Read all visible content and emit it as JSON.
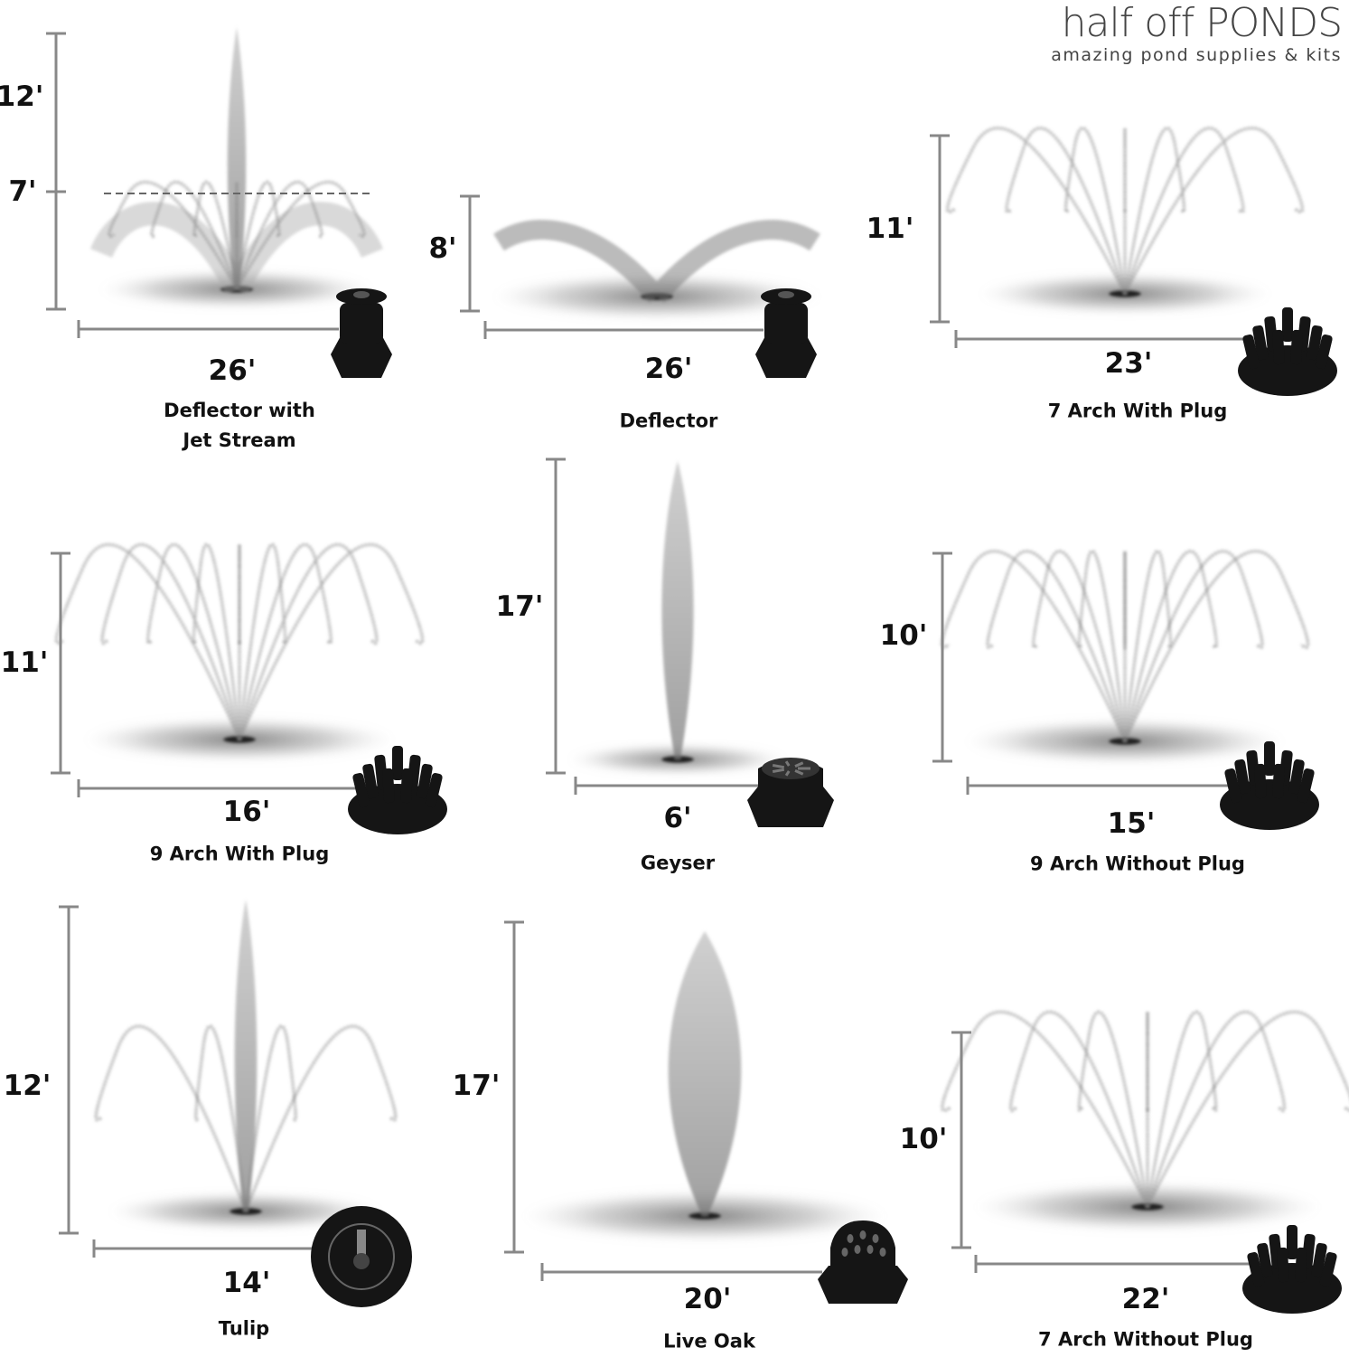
{
  "brand": {
    "name": "half off PONDS",
    "tagline": "amazing pond supplies & kits"
  },
  "colors": {
    "measure_line": "#888888",
    "text": "#111111",
    "spray": "#8a8a8a",
    "nozzle": "#151515"
  },
  "nozzles": [
    {
      "name": "Deflector with\nJet Stream",
      "height": "12'",
      "secondary_height": "7'",
      "width": "26'",
      "icon": "deflector-nozzle"
    },
    {
      "name": "Deflector",
      "height": "8'",
      "width": "26'",
      "icon": "deflector-nozzle"
    },
    {
      "name": "7 Arch With Plug",
      "height": "11'",
      "width": "23'",
      "icon": "arch-nozzle"
    },
    {
      "name": "9 Arch With Plug",
      "height": "11'",
      "width": "16'",
      "icon": "arch-nozzle"
    },
    {
      "name": "Geyser",
      "height": "17'",
      "width": "6'",
      "icon": "geyser-nozzle"
    },
    {
      "name": "9 Arch Without Plug",
      "height": "10'",
      "width": "15'",
      "icon": "arch-nozzle"
    },
    {
      "name": "Tulip",
      "height": "12'",
      "width": "14'",
      "icon": "tulip-nozzle"
    },
    {
      "name": "Live Oak",
      "height": "17'",
      "width": "20'",
      "icon": "live-oak-nozzle"
    },
    {
      "name": "7 Arch Without Plug",
      "height": "10'",
      "width": "22'",
      "icon": "arch-nozzle"
    }
  ]
}
